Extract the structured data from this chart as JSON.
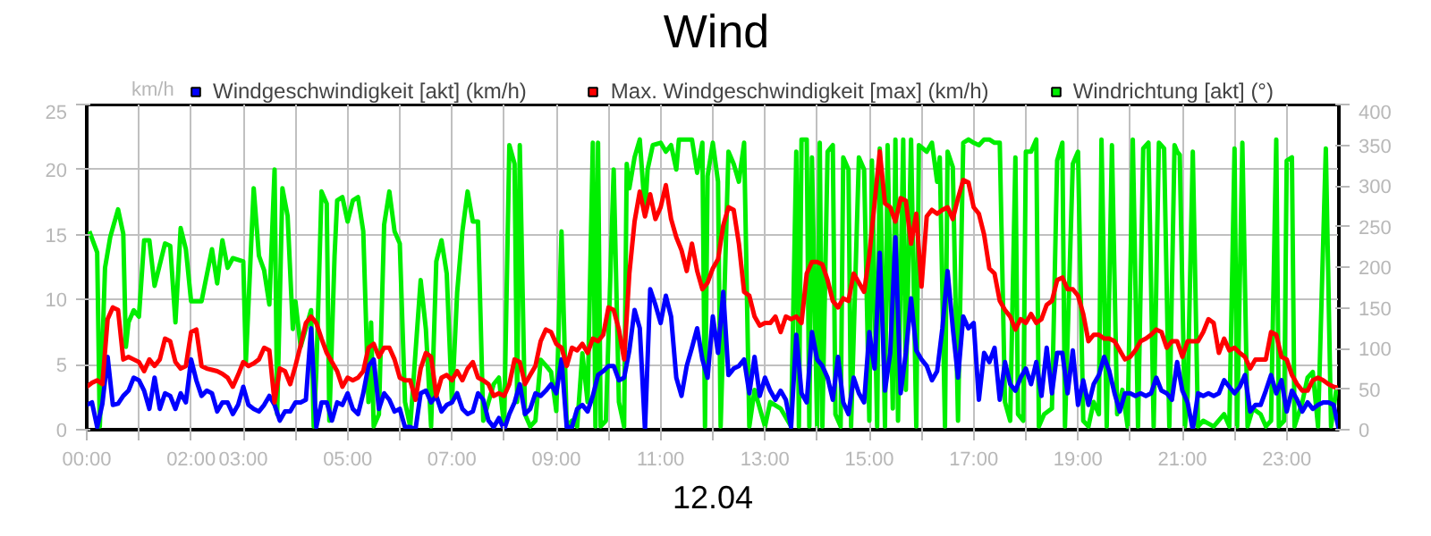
{
  "chart_data": {
    "type": "line",
    "title": "Wind",
    "xlabel": "12.04",
    "ylabel": "km/h",
    "legend": "top",
    "grid": true,
    "line_style": "solid",
    "xlim": [
      0,
      24
    ],
    "ylim": [
      0,
      25
    ],
    "y2lim": [
      0,
      400
    ],
    "xticks": [
      {
        "value": 0,
        "label": "00:00"
      },
      {
        "value": 1,
        "label": null
      },
      {
        "value": 2,
        "label": "02:00"
      },
      {
        "value": 3,
        "label": "03:00"
      },
      {
        "value": 4,
        "label": null
      },
      {
        "value": 5,
        "label": "05:00"
      },
      {
        "value": 6,
        "label": null
      },
      {
        "value": 7,
        "label": "07:00"
      },
      {
        "value": 8,
        "label": null
      },
      {
        "value": 9,
        "label": "09:00"
      },
      {
        "value": 10,
        "label": null
      },
      {
        "value": 11,
        "label": "11:00"
      },
      {
        "value": 12,
        "label": null
      },
      {
        "value": 13,
        "label": "13:00"
      },
      {
        "value": 14,
        "label": null
      },
      {
        "value": 15,
        "label": "15:00"
      },
      {
        "value": 16,
        "label": null
      },
      {
        "value": 17,
        "label": "17:00"
      },
      {
        "value": 18,
        "label": null
      },
      {
        "value": 19,
        "label": "19:00"
      },
      {
        "value": 20,
        "label": null
      },
      {
        "value": 21,
        "label": "21:00"
      },
      {
        "value": 22,
        "label": null
      },
      {
        "value": 23,
        "label": "23:00"
      }
    ],
    "yticks": [
      0,
      5,
      10,
      15,
      20,
      25
    ],
    "y2ticks": [
      0,
      50,
      100,
      150,
      200,
      250,
      300,
      350,
      400
    ],
    "x": [
      0,
      0.1,
      0.2,
      0.3,
      0.4,
      0.5,
      0.6,
      0.7,
      0.8,
      0.9,
      1,
      1.1,
      1.2,
      1.3,
      1.4,
      1.5,
      1.6,
      1.7,
      1.8,
      1.9,
      2,
      2.1,
      2.2,
      2.3,
      2.4,
      2.5,
      2.6,
      2.7,
      2.8,
      2.9,
      3,
      3.1,
      3.2,
      3.3,
      3.4,
      3.5,
      3.6,
      3.7,
      3.8,
      3.9,
      4,
      4.1,
      4.2,
      4.3,
      4.4,
      4.5,
      4.6,
      4.7,
      4.8,
      4.9,
      5,
      5.1,
      5.2,
      5.3,
      5.4,
      5.5,
      5.6,
      5.7,
      5.8,
      5.9,
      6,
      6.1,
      6.2,
      6.3,
      6.4,
      6.5,
      6.6,
      6.7,
      6.8,
      6.9,
      7,
      7.1,
      7.2,
      7.3,
      7.4,
      7.5,
      7.6,
      7.7,
      7.8,
      7.9,
      8,
      8.1,
      8.2,
      8.3,
      8.4,
      8.5,
      8.6,
      8.7,
      8.8,
      8.9,
      9,
      9.1,
      9.2,
      9.3,
      9.4,
      9.5,
      9.6,
      9.7,
      9.8,
      9.9,
      10,
      10.1,
      10.2,
      10.3,
      10.4,
      10.5,
      10.6,
      10.7,
      10.8,
      10.9,
      11,
      11.1,
      11.2,
      11.3,
      11.4,
      11.5,
      11.6,
      11.7,
      11.8,
      11.9,
      12,
      12.1,
      12.2,
      12.3,
      12.4,
      12.5,
      12.6,
      12.7,
      12.8,
      12.9,
      13,
      13.1,
      13.2,
      13.3,
      13.4,
      13.5,
      13.6,
      13.7,
      13.8,
      13.9,
      14,
      14.1,
      14.2,
      14.3,
      14.4,
      14.5,
      14.6,
      14.7,
      14.8,
      14.9,
      15,
      15.1,
      15.2,
      15.3,
      15.4,
      15.5,
      15.6,
      15.7,
      15.8,
      15.9,
      16,
      16.1,
      16.2,
      16.3,
      16.4,
      16.5,
      16.6,
      16.7,
      16.8,
      16.9,
      17,
      17.1,
      17.2,
      17.3,
      17.4,
      17.5,
      17.6,
      17.7,
      17.8,
      17.9,
      18,
      18.1,
      18.2,
      18.3,
      18.4,
      18.5,
      18.6,
      18.7,
      18.8,
      18.9,
      19,
      19.1,
      19.2,
      19.3,
      19.4,
      19.5,
      19.6,
      19.7,
      19.8,
      19.9,
      20,
      20.1,
      20.2,
      20.3,
      20.4,
      20.5,
      20.6,
      20.7,
      20.8,
      20.9,
      21,
      21.1,
      21.2,
      21.3,
      21.4,
      21.5,
      21.6,
      21.7,
      21.8,
      21.9,
      22,
      22.1,
      22.2,
      22.3,
      22.4,
      22.5,
      22.6,
      22.7,
      22.8,
      22.9,
      23,
      23.1,
      23.2,
      23.3,
      23.4,
      23.5,
      23.6,
      23.7,
      23.8,
      23.9,
      24
    ],
    "series": [
      {
        "name": "Windgeschwindigkeit [akt] (km/h)",
        "color": "#0000ff",
        "values": [
          1.9,
          2.1,
          0.2,
          2,
          5.6,
          1.9,
          2,
          2.6,
          3,
          4,
          3.8,
          3,
          1.6,
          4,
          1.6,
          2.8,
          2.6,
          1.6,
          2.8,
          2.1,
          5.4,
          3.8,
          2.6,
          3,
          2.8,
          1.4,
          2.1,
          2.1,
          1.2,
          1.9,
          3.3,
          1.9,
          1.6,
          1.4,
          1.9,
          2.6,
          1.9,
          0.7,
          1.4,
          1.4,
          2.1,
          2.1,
          2.3,
          7.8,
          0.2,
          2.1,
          2.1,
          0.7,
          2.1,
          1.9,
          2.8,
          1.6,
          1.2,
          2.8,
          4.9,
          5.4,
          1.6,
          2.8,
          2.3,
          1.4,
          1.6,
          0.2,
          0.2,
          0,
          2.8,
          3,
          2.1,
          2.6,
          1.4,
          1.9,
          2.1,
          2.8,
          1.6,
          1.2,
          1.4,
          2.8,
          2.3,
          0.7,
          0.2,
          0.9,
          0,
          1.2,
          2.1,
          3.5,
          1.2,
          1.6,
          2.8,
          2.6,
          3,
          3.5,
          2.8,
          5.4,
          0.2,
          0.2,
          1.6,
          1.9,
          1.4,
          2.6,
          4.2,
          4.5,
          4.9,
          4.9,
          3.8,
          4,
          6.1,
          9.2,
          7.8,
          0,
          10.8,
          9.6,
          8.2,
          10.3,
          8.7,
          4,
          2.6,
          4.9,
          6.3,
          7.8,
          5.4,
          4,
          8.7,
          5.9,
          10.6,
          4.2,
          4.7,
          4.9,
          5.4,
          2.8,
          5.6,
          2.6,
          4,
          3,
          2.3,
          3,
          2.3,
          0.2,
          7.3,
          2.8,
          2.1,
          7.5,
          5.4,
          4.9,
          4,
          2.3,
          5.6,
          2.1,
          1.2,
          4,
          2.8,
          2.1,
          7.5,
          4.7,
          13.6,
          3,
          5.9,
          14.8,
          2.8,
          5.9,
          10.1,
          6.1,
          5.4,
          4.9,
          3.8,
          4.5,
          7.8,
          12.2,
          7.8,
          4,
          8.7,
          7.8,
          8.2,
          2.3,
          5.9,
          5.2,
          6.3,
          2.3,
          5.2,
          3.5,
          3,
          4,
          4.7,
          3.5,
          5.2,
          2.6,
          6.3,
          2.8,
          5.9,
          5.9,
          2.8,
          6.1,
          1.9,
          3.8,
          1.9,
          3.5,
          4.2,
          5.6,
          4.5,
          2.8,
          1.4,
          2.8,
          2.8,
          2.6,
          2.8,
          2.6,
          2.8,
          4,
          3,
          2.8,
          2.3,
          5.2,
          3,
          2.1,
          0,
          2.8,
          2.6,
          2.8,
          2.6,
          2.8,
          3.8,
          3.3,
          2.8,
          3.3,
          4.2,
          1.4,
          1.9,
          1.9,
          3,
          4.2,
          2.8,
          3.8,
          1.4,
          3,
          2.3,
          1.4,
          2.1,
          1.6,
          1.9,
          2.1,
          2.1,
          1.9,
          0
        ]
      },
      {
        "name": "Max. Windgeschwindigkeit [max] (km/h)",
        "color": "#ff0000",
        "values": [
          3.3,
          3.6,
          3.8,
          3.5,
          8.5,
          9.4,
          9.2,
          5.4,
          5.6,
          5.4,
          5.2,
          4.5,
          5.4,
          4.9,
          5.4,
          7,
          6.8,
          5.2,
          4.7,
          4.9,
          7.5,
          7.7,
          4.9,
          4.7,
          4.6,
          4.5,
          4.3,
          4,
          3.3,
          4.2,
          5.2,
          4.9,
          5.1,
          5.4,
          6.3,
          6.1,
          2.1,
          4.7,
          4.5,
          3.5,
          4.9,
          6.5,
          8.2,
          8.7,
          8.2,
          7,
          5.9,
          5.2,
          4.5,
          3.3,
          4,
          3.8,
          4,
          4.5,
          6.3,
          6.6,
          5.6,
          6.3,
          6.3,
          5.4,
          4,
          3.8,
          3.8,
          2.3,
          4.7,
          5.9,
          5.6,
          2.6,
          4,
          4.2,
          3.8,
          4.5,
          3.8,
          4.7,
          5.2,
          4,
          3.8,
          3.5,
          2.6,
          2.8,
          2.6,
          3.5,
          5.4,
          5.2,
          3.5,
          4.2,
          4.9,
          6.8,
          7.7,
          7.5,
          6.6,
          6.3,
          4.9,
          6.3,
          6.1,
          6.6,
          5.9,
          7,
          6.8,
          7.3,
          9.4,
          9.2,
          7.7,
          5.4,
          12,
          16,
          18.3,
          16.4,
          18.1,
          16.2,
          17.1,
          18.8,
          16.2,
          14.8,
          13.8,
          12.2,
          14.3,
          12.2,
          10.8,
          11.3,
          12.4,
          13.1,
          15.7,
          17.1,
          16.9,
          14.3,
          10.6,
          10.3,
          8.7,
          8,
          8.2,
          8.2,
          8.7,
          7.5,
          8.7,
          8.5,
          8.7,
          8.2,
          12,
          12.9,
          12.9,
          12.7,
          11.5,
          9.9,
          9.4,
          10.1,
          9.9,
          12,
          11.3,
          10.6,
          13.4,
          17.4,
          21.4,
          17.4,
          17.1,
          16,
          17.8,
          17.6,
          14.3,
          16.6,
          11,
          16.4,
          16.9,
          16.6,
          16.9,
          17.1,
          16.2,
          17.8,
          19.2,
          19,
          17.1,
          16.6,
          15,
          12.4,
          12,
          9.9,
          9.2,
          8.7,
          7.7,
          8.5,
          8.2,
          8.9,
          8.2,
          8.5,
          9.6,
          9.9,
          11.5,
          11.7,
          10.8,
          10.8,
          10.3,
          8.9,
          6.8,
          7.3,
          7.3,
          7,
          7,
          6.8,
          6.1,
          5.4,
          5.6,
          6.1,
          6.8,
          7,
          7.3,
          7.7,
          7.5,
          6.3,
          6.8,
          6.8,
          5.6,
          6.8,
          6.8,
          6.8,
          7.5,
          8.5,
          8.2,
          5.9,
          7,
          6.1,
          6.3,
          5.9,
          5.6,
          4.7,
          5.4,
          5.4,
          5.4,
          7.5,
          7.3,
          5.6,
          5.4,
          4.2,
          3.5,
          3,
          3,
          3.8,
          4,
          3.8,
          3.5,
          3.3,
          3.2
        ]
      },
      {
        "name": "Windrichtung [akt] (°)",
        "color": "#00ee00",
        "axis": "y2",
        "x": [
          0.05,
          0.2,
          0.25,
          0.35,
          0.45,
          0.6,
          0.7,
          0.75,
          0.8,
          0.9,
          1.0,
          1.1,
          1.2,
          1.3,
          1.5,
          1.6,
          1.7,
          1.8,
          1.9,
          2.0,
          2.2,
          2.4,
          2.5,
          2.6,
          2.7,
          2.8,
          3.0,
          3.05,
          3.2,
          3.3,
          3.4,
          3.5,
          3.6,
          3.65,
          3.75,
          3.85,
          3.95,
          4.0,
          4.1,
          4.3,
          4.35,
          4.4,
          4.5,
          4.6,
          4.65,
          4.75,
          4.8,
          4.9,
          5.0,
          5.1,
          5.2,
          5.3,
          5.4,
          5.45,
          5.5,
          5.6,
          5.7,
          5.8,
          5.9,
          6.0,
          6.1,
          6.2,
          6.4,
          6.5,
          6.6,
          6.7,
          6.8,
          6.9,
          7.0,
          7.1,
          7.2,
          7.3,
          7.4,
          7.5,
          7.6,
          7.7,
          7.8,
          7.9,
          8.0,
          8.1,
          8.2,
          8.25,
          8.3,
          8.4,
          8.5,
          8.6,
          8.7,
          8.8,
          8.9,
          9.0,
          9.1,
          9.2,
          9.3,
          9.4,
          9.5,
          9.6,
          9.7,
          9.75,
          9.8,
          9.85,
          9.95,
          10.1,
          10.2,
          10.3,
          10.35,
          10.4,
          10.5,
          10.6,
          10.7,
          10.75,
          10.85,
          11.0,
          11.1,
          11.2,
          11.3,
          11.35,
          11.45,
          11.6,
          11.7,
          11.8,
          11.85,
          11.9,
          12.0,
          12.1,
          12.15,
          12.3,
          12.4,
          12.5,
          12.6,
          12.7,
          12.8,
          13.0,
          13.1,
          13.3,
          13.5,
          13.6,
          13.65,
          13.7,
          13.8,
          13.85,
          13.9,
          14.0,
          14.05,
          14.1,
          14.2,
          14.3,
          14.35,
          14.45,
          14.5,
          14.6,
          14.65,
          14.8,
          14.9,
          15.0,
          15.05,
          15.15,
          15.2,
          15.3,
          15.35,
          15.45,
          15.5,
          15.55,
          15.65,
          15.7,
          15.8,
          15.9,
          15.95,
          16.1,
          16.2,
          16.3,
          16.35,
          16.45,
          16.5,
          16.6,
          16.7,
          16.8,
          16.9,
          17.0,
          17.1,
          17.2,
          17.3,
          17.4,
          17.5,
          17.6,
          17.7,
          17.8,
          17.85,
          17.95,
          18.0,
          18.1,
          18.2,
          18.25,
          18.35,
          18.5,
          18.6,
          18.7,
          18.75,
          18.9,
          19.0,
          19.1,
          19.2,
          19.3,
          19.4,
          19.45,
          19.55,
          19.65,
          19.75,
          19.85,
          19.95,
          20.05,
          20.15,
          20.25,
          20.35,
          20.45,
          20.55,
          20.65,
          20.75,
          20.85,
          20.9,
          20.95,
          21.05,
          21.1,
          21.2,
          21.3,
          21.4,
          21.6,
          21.8,
          21.9,
          22.0,
          22.05,
          22.15,
          22.25,
          22.35,
          22.5,
          22.6,
          22.7,
          22.8,
          22.85,
          22.95,
          23.0,
          23.1,
          23.15,
          23.3,
          23.4,
          23.5,
          23.6,
          23.75,
          23.85,
          23.95
        ],
        "values": [
          244,
          218,
          4,
          199,
          237,
          271,
          241,
          102,
          132,
          147,
          139,
          233,
          233,
          177,
          229,
          226,
          132,
          248,
          222,
          158,
          158,
          222,
          180,
          233,
          199,
          211,
          207,
          83,
          297,
          214,
          196,
          154,
          320,
          19,
          297,
          263,
          124,
          158,
          102,
          147,
          4,
          71,
          293,
          278,
          11,
          214,
          282,
          286,
          256,
          282,
          286,
          244,
          34,
          132,
          4,
          19,
          252,
          293,
          244,
          229,
          34,
          4,
          184,
          124,
          4,
          207,
          233,
          192,
          34,
          169,
          244,
          293,
          256,
          256,
          11,
          34,
          56,
          64,
          4,
          350,
          327,
          34,
          350,
          19,
          4,
          11,
          86,
          79,
          71,
          23,
          244,
          4,
          11,
          4,
          94,
          34,
          353,
          4,
          353,
          4,
          11,
          320,
          34,
          4,
          327,
          297,
          335,
          357,
          267,
          320,
          350,
          353,
          342,
          350,
          320,
          357,
          357,
          357,
          316,
          353,
          4,
          312,
          353,
          305,
          4,
          342,
          327,
          305,
          353,
          4,
          49,
          4,
          34,
          26,
          4,
          342,
          4,
          357,
          357,
          4,
          335,
          4,
          353,
          4,
          342,
          350,
          19,
          4,
          335,
          320,
          4,
          335,
          320,
          11,
          331,
          4,
          346,
          4,
          350,
          26,
          357,
          11,
          357,
          49,
          357,
          4,
          350,
          342,
          353,
          305,
          335,
          4,
          342,
          323,
          11,
          353,
          357,
          353,
          350,
          357,
          357,
          353,
          353,
          34,
          11,
          335,
          19,
          11,
          342,
          342,
          357,
          4,
          19,
          26,
          331,
          353,
          4,
          327,
          342,
          11,
          4,
          34,
          19,
          357,
          4,
          350,
          19,
          49,
          4,
          357,
          4,
          346,
          353,
          4,
          353,
          346,
          4,
          350,
          342,
          338,
          4,
          41,
          342,
          4,
          11,
          4,
          19,
          4,
          346,
          4,
          353,
          4,
          26,
          19,
          4,
          11,
          357,
          4,
          11,
          331,
          335,
          4,
          34,
          64,
          71,
          4,
          346,
          4,
          49
        ]
      }
    ]
  }
}
